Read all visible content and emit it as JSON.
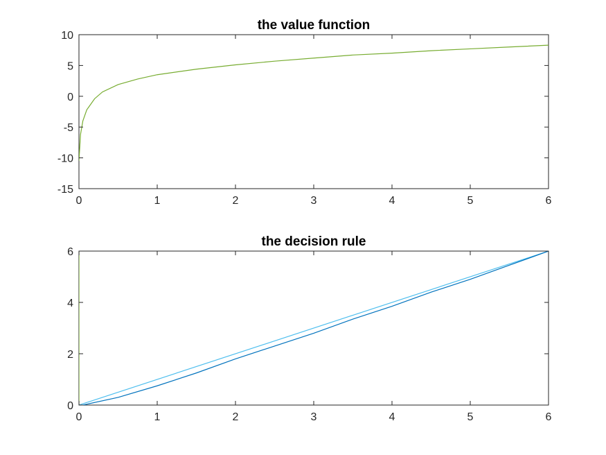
{
  "chart_data": [
    {
      "type": "line",
      "title": "the value function",
      "xlabel": "",
      "ylabel": "",
      "xlim": [
        0,
        6
      ],
      "ylim": [
        -15,
        10
      ],
      "xticks": [
        "0",
        "1",
        "2",
        "3",
        "4",
        "5",
        "6"
      ],
      "yticks": [
        "10",
        "5",
        "0",
        "-5",
        "-10",
        "-15"
      ],
      "grid": false,
      "legend": "none",
      "series": [
        {
          "color": "#77ac30",
          "x": [
            0.0,
            0.02,
            0.05,
            0.1,
            0.2,
            0.3,
            0.5,
            0.75,
            1.0,
            1.5,
            2.0,
            2.5,
            3.0,
            3.5,
            4.0,
            4.5,
            5.0,
            5.5,
            6.0
          ],
          "y": [
            -10.5,
            -6.2,
            -4.0,
            -2.2,
            -0.4,
            0.7,
            1.9,
            2.8,
            3.5,
            4.4,
            5.1,
            5.7,
            6.2,
            6.7,
            7.0,
            7.4,
            7.7,
            8.0,
            8.3
          ]
        }
      ]
    },
    {
      "type": "line",
      "title": "the decision rule",
      "xlabel": "",
      "ylabel": "",
      "xlim": [
        0,
        6
      ],
      "ylim": [
        0,
        6
      ],
      "xticks": [
        "0",
        "1",
        "2",
        "3",
        "4",
        "5",
        "6"
      ],
      "yticks": [
        "6",
        "4",
        "2",
        "0"
      ],
      "grid": false,
      "legend": "none",
      "series": [
        {
          "color": "#4dbeee",
          "x": [
            0,
            6
          ],
          "y": [
            0,
            6
          ]
        },
        {
          "color": "#0072bd",
          "x": [
            0.05,
            0.5,
            1.0,
            1.5,
            2.0,
            2.5,
            3.0,
            3.5,
            4.0,
            4.5,
            5.0,
            5.5,
            6.0
          ],
          "y": [
            0.0,
            0.3,
            0.75,
            1.25,
            1.8,
            2.3,
            2.8,
            3.35,
            3.85,
            4.4,
            4.9,
            5.45,
            6.0
          ]
        },
        {
          "color": "#77ac30",
          "x": [
            0.0,
            0.0
          ],
          "y": [
            0.0,
            6.0
          ]
        }
      ]
    }
  ]
}
